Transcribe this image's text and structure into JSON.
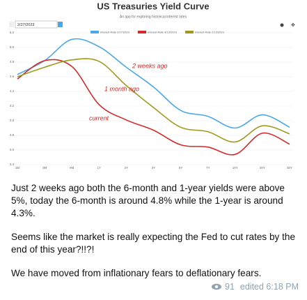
{
  "chart_data": {
    "type": "line",
    "title": "US Treasuries Yield Curve",
    "subtitle": "An app for exploring historical interest rates",
    "date_input": "2/27/2023",
    "categories": [
      "1M",
      "3M",
      "6M",
      "1Y",
      "2Y",
      "3Y",
      "5Y",
      "7Y",
      "10Y",
      "20Y",
      "30Y"
    ],
    "series": [
      {
        "name": "Interest Rate 2/27/2023",
        "color": "#4aa8e8",
        "values": [
          4.63,
          4.82,
          5.11,
          5.01,
          4.73,
          4.46,
          4.14,
          4.06,
          3.9,
          4.08,
          3.91
        ]
      },
      {
        "name": "Interest Rate 3/13/2023",
        "color": "#d42a2a",
        "values": [
          4.57,
          4.82,
          4.74,
          4.22,
          4.01,
          3.87,
          3.67,
          3.64,
          3.54,
          3.83,
          3.68
        ]
      },
      {
        "name": "Interest Rate 2/13/2023",
        "color": "#9e9a1c",
        "values": [
          4.6,
          4.73,
          4.83,
          4.81,
          4.48,
          4.18,
          3.91,
          3.85,
          3.71,
          3.93,
          3.82
        ]
      }
    ],
    "ylim": [
      3.4,
      5.3
    ],
    "yticks": [
      3.4,
      3.6,
      3.8,
      {
        "value": 4,
        "label": "4.0"
      },
      4.2,
      4.4,
      4.6,
      4.8,
      {
        "value": 5,
        "label": "5.0"
      },
      5.2
    ],
    "grid": true,
    "annotations": [
      "2 weeks ago",
      "1 month ago",
      "current"
    ]
  },
  "message": {
    "paragraphs": [
      "Just 2 weeks ago both the 6-month and 1-year yields were above 5%, today the 6-month is around 4.8% while the 1-year is around 4.3%.",
      "Seems like the market is really expecting the Fed to cut rates by the end of this year?!!?!",
      "We have moved from inflationary fears to deflationary fears."
    ],
    "views": 91,
    "edited": "edited 6:18 PM"
  }
}
